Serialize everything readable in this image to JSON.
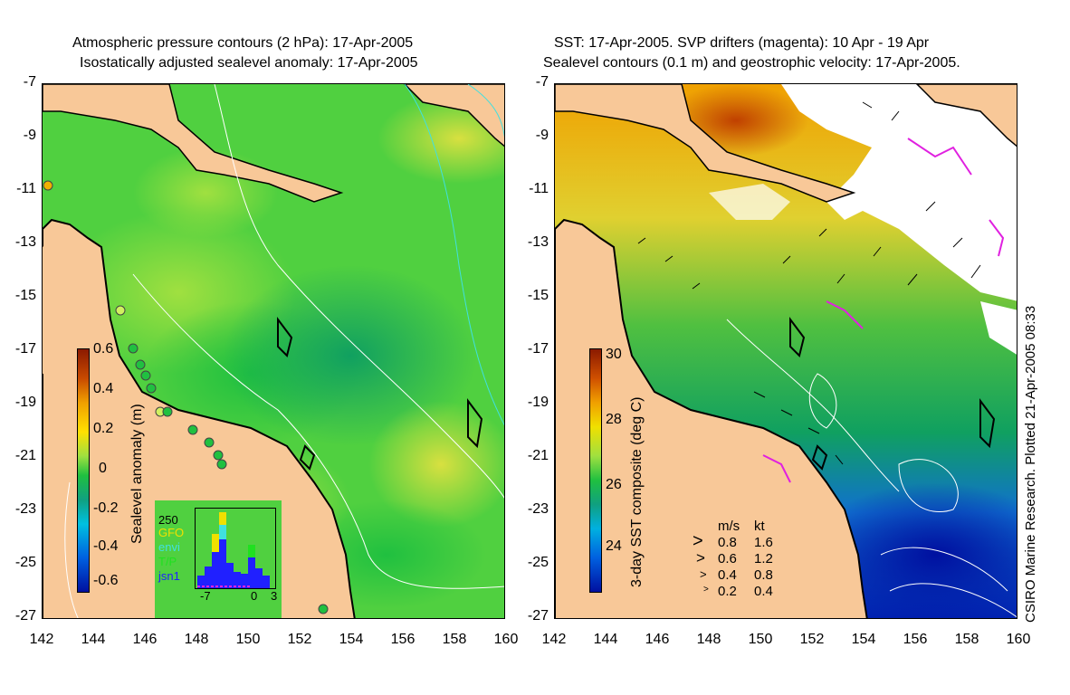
{
  "left_panel": {
    "title_line1": "Atmospheric pressure contours (2 hPa): 17-Apr-2005",
    "title_line2": "Isostatically adjusted sealevel anomaly: 17-Apr-2005",
    "colorbar": {
      "label": "Sealevel anomaly (m)",
      "ticks": [
        "0.6",
        "0.4",
        "0.2",
        "0",
        "-0.2",
        "-0.4",
        "-0.6"
      ],
      "colors": [
        "#8b1a00",
        "#c84a00",
        "#f0a000",
        "#ffe000",
        "#a0e040",
        "#20c040",
        "#10a080",
        "#00c0e0",
        "#0060e0",
        "#0010a0"
      ]
    },
    "histogram": {
      "top_label": "250",
      "legend": [
        {
          "name": "GFO",
          "color": "#f0e000"
        },
        {
          "name": "envi",
          "color": "#40e0e0"
        },
        {
          "name": "T/P",
          "color": "#20e020"
        },
        {
          "name": "jsn1",
          "color": "#2020ff"
        }
      ],
      "x_ticks": [
        "-7",
        "0",
        "3"
      ]
    }
  },
  "right_panel": {
    "title_line1": "SST: 17-Apr-2005. SVP drifters (magenta): 10 Apr - 19 Apr",
    "title_line2": "Sealevel contours (0.1 m) and geostrophic velocity: 17-Apr-2005.",
    "colorbar": {
      "label": "3-day SST composite (deg C)",
      "ticks": [
        "30",
        "28",
        "26",
        "24"
      ],
      "colors": [
        "#8b1a00",
        "#d05000",
        "#f0a000",
        "#f0e000",
        "#a0e040",
        "#20c040",
        "#10a080",
        "#00b0e0",
        "#0060e0",
        "#0010a0"
      ]
    },
    "velocity_legend": {
      "header_ms": "m/s",
      "header_kt": "kt",
      "rows": [
        {
          "ms": "0.8",
          "kt": "1.6"
        },
        {
          "ms": "0.6",
          "kt": "1.2"
        },
        {
          "ms": "0.4",
          "kt": "0.8"
        },
        {
          "ms": "0.2",
          "kt": "0.4"
        }
      ]
    },
    "credit": "CSIRO Marine Research. Plotted 21-Apr-2005 08:33"
  },
  "axes": {
    "y_ticks": [
      "-7",
      "-9",
      "-11",
      "-13",
      "-15",
      "-17",
      "-19",
      "-21",
      "-23",
      "-25",
      "-27"
    ],
    "x_ticks": [
      "142",
      "144",
      "146",
      "148",
      "150",
      "152",
      "154",
      "156",
      "158",
      "160"
    ]
  },
  "colors": {
    "land": "#f8c898",
    "coast": "#000000",
    "contour": "#ffffff",
    "drifter": "#e020e0"
  }
}
